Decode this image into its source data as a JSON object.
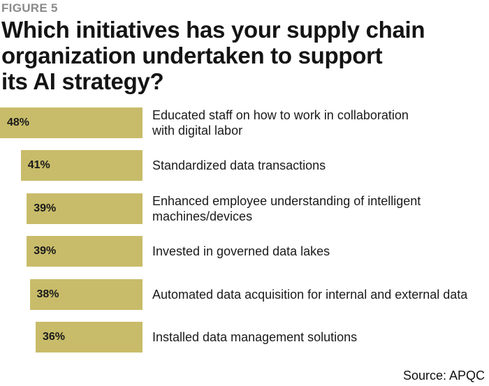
{
  "header": {
    "figure_label": "FIGURE 5",
    "title_lines": [
      "Which initiatives has your supply chain",
      "organization undertaken to support",
      "its AI strategy?"
    ]
  },
  "colors": {
    "bar": "#c8bc6a",
    "text": "#1a1a1a",
    "figure_label": "#8a8a8a"
  },
  "chart_data": {
    "type": "bar",
    "orientation": "horizontal",
    "title": "Which initiatives has your supply chain organization undertaken to support its AI strategy?",
    "categories": [
      [
        "Educated staff on how to work in collaboration",
        "with digital labor"
      ],
      [
        "Standardized data transactions"
      ],
      [
        "Enhanced employee understanding of intelligent",
        "machines/devices"
      ],
      [
        "Invested in governed data lakes"
      ],
      [
        "Automated data acquisition for internal and external data"
      ],
      [
        "Installed data management solutions"
      ]
    ],
    "values": [
      48,
      41,
      39,
      39,
      38,
      36
    ],
    "value_labels": [
      "48%",
      "41%",
      "39%",
      "39%",
      "38%",
      "36%"
    ],
    "unit": "%",
    "xlim": [
      0,
      48
    ],
    "grid": false,
    "legend": "none"
  },
  "footer": {
    "source": "Source: APQC"
  }
}
